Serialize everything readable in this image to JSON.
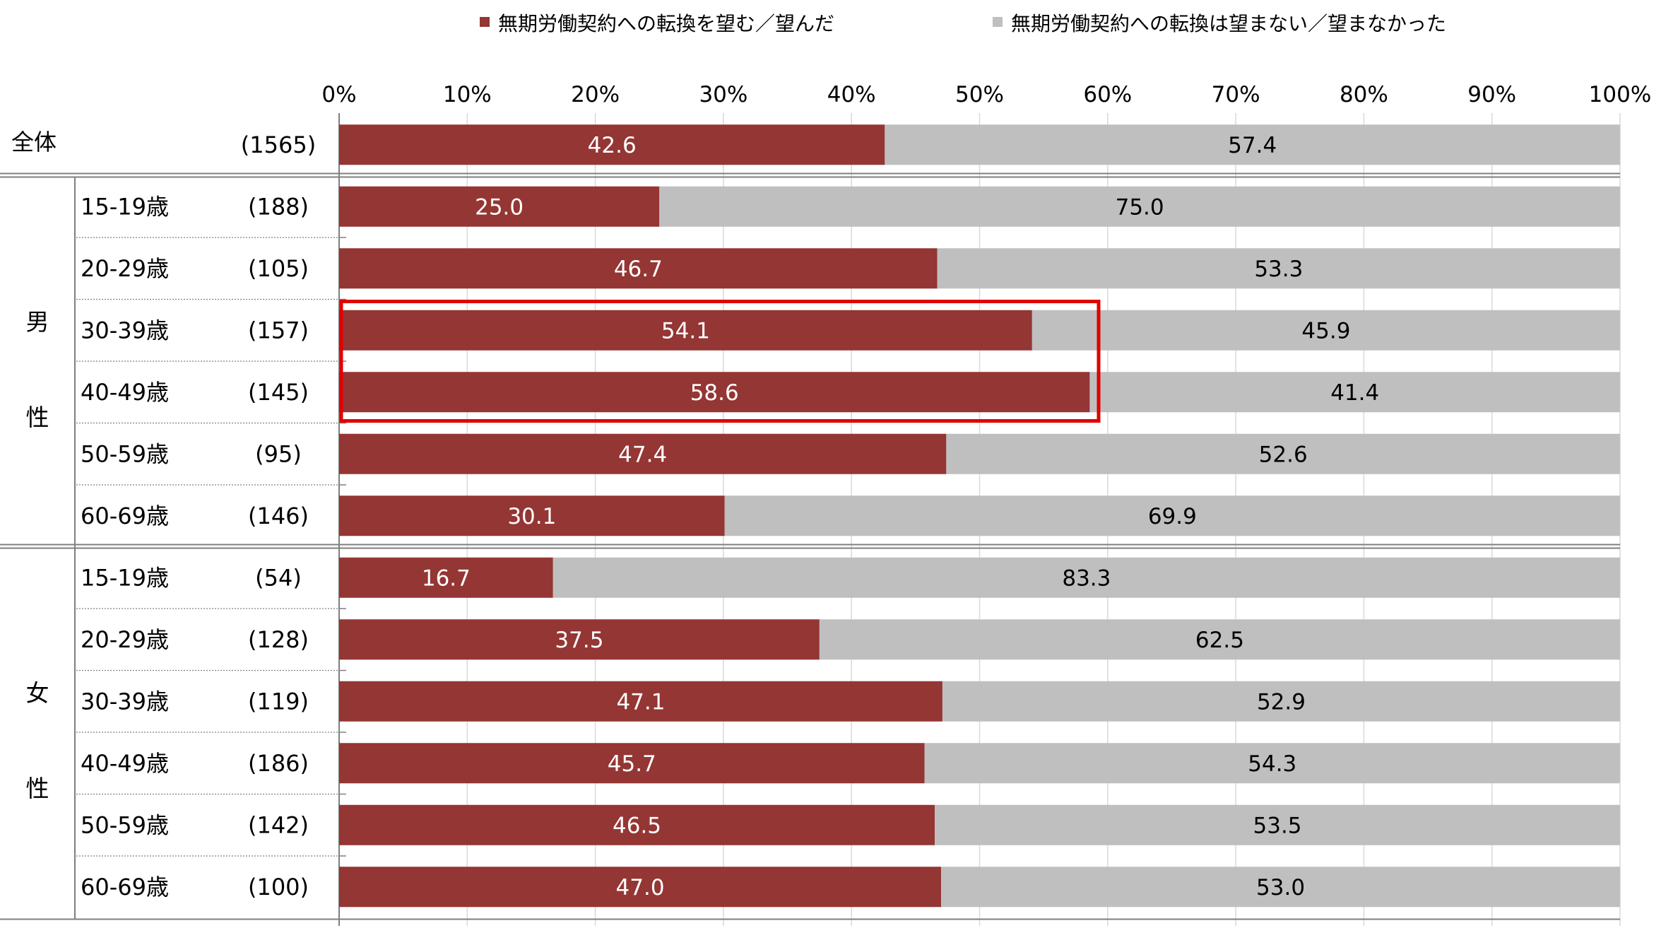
{
  "chart_data": {
    "type": "bar",
    "orientation": "horizontal",
    "stacked": true,
    "xlim": [
      0,
      100
    ],
    "x_ticks": [
      "0%",
      "10%",
      "20%",
      "30%",
      "40%",
      "50%",
      "60%",
      "70%",
      "80%",
      "90%",
      "100%"
    ],
    "legend_position": "top",
    "series": [
      {
        "name": "無期労働契約への転換を望む／望んだ",
        "color": "#943634",
        "values": [
          42.6,
          25.0,
          46.7,
          54.1,
          58.6,
          47.4,
          30.1,
          16.7,
          37.5,
          47.1,
          45.7,
          46.5,
          47.0
        ]
      },
      {
        "name": "無期労働契約への転換は望まない／望まなかった",
        "color": "#bfbfbf",
        "values": [
          57.4,
          75.0,
          53.3,
          45.9,
          41.4,
          52.6,
          69.9,
          83.3,
          62.5,
          52.9,
          54.3,
          53.5,
          53.0
        ]
      }
    ],
    "rows": [
      {
        "label": "全体",
        "n": "(1565)"
      },
      {
        "group": "male",
        "label": "15-19歳",
        "n": "(188)"
      },
      {
        "group": "male",
        "label": "20-29歳",
        "n": "(105)"
      },
      {
        "group": "male",
        "label": "30-39歳",
        "n": "(157)"
      },
      {
        "group": "male",
        "label": "40-49歳",
        "n": "(145)"
      },
      {
        "group": "male",
        "label": "50-59歳",
        "n": "(95)"
      },
      {
        "group": "male",
        "label": "60-69歳",
        "n": "(146)"
      },
      {
        "group": "female",
        "label": "15-19歳",
        "n": "(54)"
      },
      {
        "group": "female",
        "label": "20-29歳",
        "n": "(128)"
      },
      {
        "group": "female",
        "label": "30-39歳",
        "n": "(119)"
      },
      {
        "group": "female",
        "label": "40-49歳",
        "n": "(186)"
      },
      {
        "group": "female",
        "label": "50-59歳",
        "n": "(142)"
      },
      {
        "group": "female",
        "label": "60-69歳",
        "n": "(100)"
      }
    ],
    "groups": {
      "male": [
        "男",
        "性"
      ],
      "female": [
        "女",
        "性"
      ]
    },
    "highlight": {
      "rows": [
        3,
        4
      ],
      "color": "#e00000"
    }
  }
}
